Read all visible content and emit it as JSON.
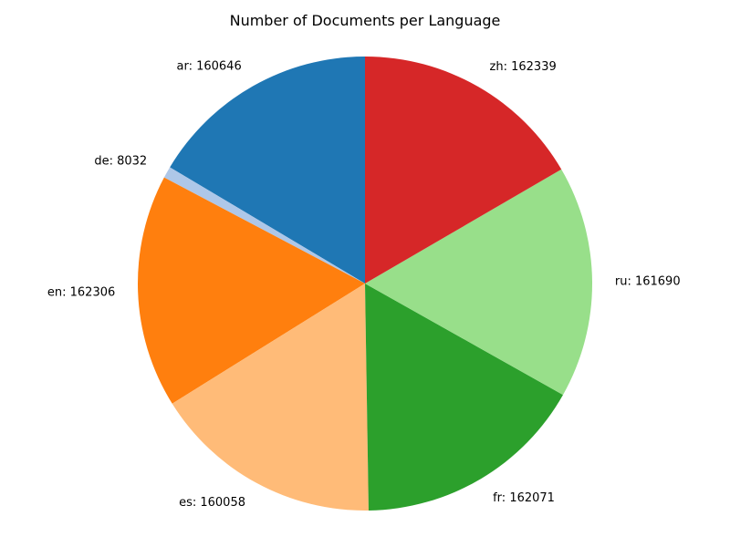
{
  "chart_data": {
    "type": "pie",
    "title": "Number of Documents per Language",
    "start_angle_deg": 90,
    "direction": "counterclockwise",
    "slices": [
      {
        "label": "ar",
        "value": 160646,
        "color": "#1f77b4"
      },
      {
        "label": "de",
        "value": 8032,
        "color": "#aec7e8"
      },
      {
        "label": "en",
        "value": 162306,
        "color": "#ff7f0e"
      },
      {
        "label": "es",
        "value": 160058,
        "color": "#ffbb78"
      },
      {
        "label": "fr",
        "value": 162071,
        "color": "#2ca02c"
      },
      {
        "label": "ru",
        "value": 161690,
        "color": "#98df8a"
      },
      {
        "label": "zh",
        "value": 162339,
        "color": "#d62728"
      }
    ],
    "label_format": "{label}: {value}"
  }
}
